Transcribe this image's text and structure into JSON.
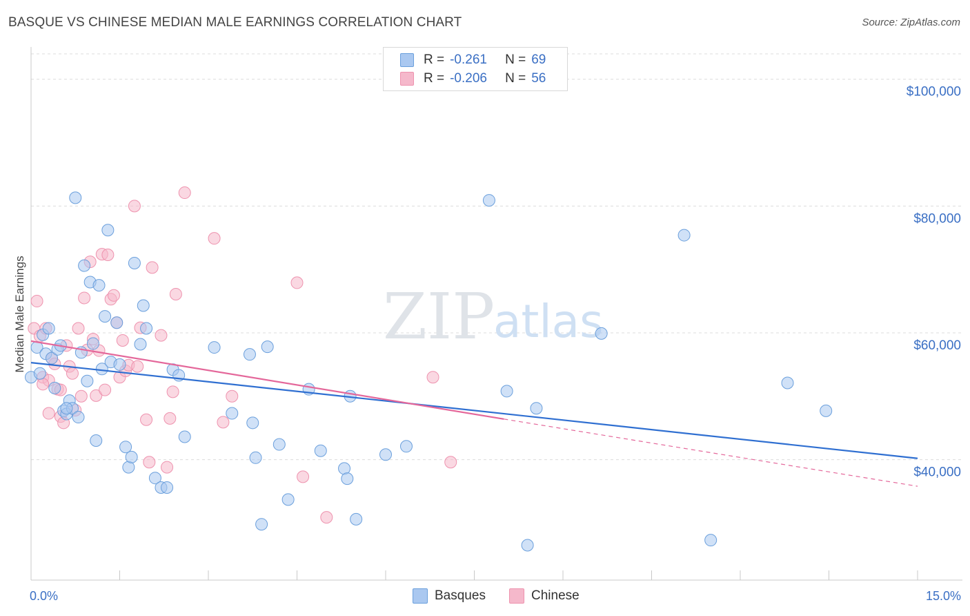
{
  "header": {
    "title": "BASQUE VS CHINESE MEDIAN MALE EARNINGS CORRELATION CHART",
    "source": "Source: ZipAtlas.com"
  },
  "watermark": {
    "zip": "ZIP",
    "atlas": "atlas"
  },
  "legend": {
    "rows": [
      {
        "r_label": "R =",
        "r_value": "-0.261",
        "n_label": "N =",
        "n_value": "69",
        "color": "#aac8f0"
      },
      {
        "r_label": "R =",
        "r_value": "-0.206",
        "n_label": "N =",
        "n_value": "56",
        "color": "#f5b8cb"
      }
    ]
  },
  "bottom_legend": [
    {
      "label": "Basques",
      "color": "#aac8f0"
    },
    {
      "label": "Chinese",
      "color": "#f5b8cb"
    }
  ],
  "chart_data": {
    "type": "scatter",
    "title": "BASQUE VS CHINESE MEDIAN MALE EARNINGS CORRELATION CHART",
    "xlabel": "",
    "ylabel": "Median Male Earnings",
    "xlim": [
      0,
      15
    ],
    "ylim": [
      21000,
      104000
    ],
    "x_tick_labels": [
      "0.0%",
      "15.0%"
    ],
    "y_ticks": [
      40000,
      60000,
      80000,
      100000
    ],
    "y_tick_labels": [
      "$40,000",
      "$60,000",
      "$80,000",
      "$100,000"
    ],
    "grid": true,
    "legend_position": "top-center",
    "series": [
      {
        "name": "Basques",
        "color": "#6a9fdc",
        "fill": "#aac8f0",
        "trend": {
          "x": [
            0.0,
            15.0
          ],
          "y": [
            55300,
            40200
          ],
          "color": "#2f6fd1"
        },
        "points": [
          [
            0.1,
            57700
          ],
          [
            0.2,
            59700
          ],
          [
            0.25,
            56700
          ],
          [
            0.3,
            60700
          ],
          [
            0.35,
            56000
          ],
          [
            0.4,
            51300
          ],
          [
            0.45,
            57400
          ],
          [
            0.5,
            58000
          ],
          [
            0.55,
            47700
          ],
          [
            0.6,
            47200
          ],
          [
            0.65,
            49300
          ],
          [
            0.7,
            48100
          ],
          [
            0.75,
            81300
          ],
          [
            0.8,
            46700
          ],
          [
            0.85,
            56900
          ],
          [
            0.9,
            70600
          ],
          [
            0.95,
            52400
          ],
          [
            1.0,
            68000
          ],
          [
            1.05,
            58300
          ],
          [
            1.1,
            43000
          ],
          [
            1.15,
            67500
          ],
          [
            1.2,
            54300
          ],
          [
            1.25,
            62600
          ],
          [
            1.3,
            76200
          ],
          [
            1.35,
            55400
          ],
          [
            1.45,
            61600
          ],
          [
            1.5,
            55000
          ],
          [
            1.6,
            42000
          ],
          [
            1.65,
            38800
          ],
          [
            1.7,
            40400
          ],
          [
            1.75,
            71000
          ],
          [
            1.85,
            58200
          ],
          [
            1.9,
            64300
          ],
          [
            1.95,
            60700
          ],
          [
            2.1,
            37100
          ],
          [
            2.2,
            35600
          ],
          [
            2.3,
            35600
          ],
          [
            2.4,
            54200
          ],
          [
            2.5,
            53300
          ],
          [
            2.6,
            43600
          ],
          [
            3.1,
            57700
          ],
          [
            3.4,
            47300
          ],
          [
            3.7,
            56600
          ],
          [
            3.75,
            45800
          ],
          [
            3.8,
            40300
          ],
          [
            3.9,
            29800
          ],
          [
            4.0,
            57800
          ],
          [
            4.2,
            42400
          ],
          [
            4.35,
            33700
          ],
          [
            4.7,
            51100
          ],
          [
            4.9,
            41400
          ],
          [
            5.3,
            38600
          ],
          [
            5.35,
            37000
          ],
          [
            5.4,
            50000
          ],
          [
            5.5,
            30600
          ],
          [
            6.0,
            40800
          ],
          [
            6.35,
            42100
          ],
          [
            7.75,
            80900
          ],
          [
            8.05,
            50800
          ],
          [
            8.4,
            26500
          ],
          [
            8.55,
            48100
          ],
          [
            9.65,
            59900
          ],
          [
            11.05,
            75400
          ],
          [
            11.5,
            27300
          ],
          [
            12.8,
            52100
          ],
          [
            13.45,
            47700
          ],
          [
            0.0,
            53000
          ],
          [
            0.15,
            53600
          ],
          [
            0.6,
            48100
          ]
        ]
      },
      {
        "name": "Chinese",
        "color": "#ee92ae",
        "fill": "#f5b8cb",
        "trend": {
          "x": [
            0.0,
            8.0
          ],
          "y": [
            58700,
            46400
          ],
          "color": "#e4679a"
        },
        "trend_dashed": {
          "x": [
            8.0,
            15.0
          ],
          "y": [
            46400,
            35800
          ],
          "color": "#e4679a"
        },
        "points": [
          [
            0.05,
            60700
          ],
          [
            0.1,
            65000
          ],
          [
            0.15,
            59500
          ],
          [
            0.2,
            53000
          ],
          [
            0.25,
            60700
          ],
          [
            0.3,
            47300
          ],
          [
            0.35,
            56000
          ],
          [
            0.4,
            55100
          ],
          [
            0.45,
            51100
          ],
          [
            0.5,
            46800
          ],
          [
            0.55,
            45800
          ],
          [
            0.6,
            58000
          ],
          [
            0.65,
            54700
          ],
          [
            0.7,
            53600
          ],
          [
            0.75,
            47800
          ],
          [
            0.8,
            60700
          ],
          [
            0.85,
            50000
          ],
          [
            0.9,
            65500
          ],
          [
            1.0,
            71200
          ],
          [
            1.05,
            59000
          ],
          [
            1.1,
            50100
          ],
          [
            1.15,
            57200
          ],
          [
            1.2,
            72400
          ],
          [
            1.25,
            51000
          ],
          [
            1.3,
            72300
          ],
          [
            1.35,
            65300
          ],
          [
            1.4,
            65900
          ],
          [
            1.45,
            61600
          ],
          [
            1.5,
            53000
          ],
          [
            1.55,
            58800
          ],
          [
            1.6,
            54000
          ],
          [
            1.65,
            54900
          ],
          [
            1.75,
            80000
          ],
          [
            1.85,
            60800
          ],
          [
            1.95,
            46300
          ],
          [
            2.0,
            39600
          ],
          [
            2.05,
            70300
          ],
          [
            2.2,
            59600
          ],
          [
            2.3,
            38800
          ],
          [
            2.35,
            46500
          ],
          [
            2.4,
            50700
          ],
          [
            2.45,
            66100
          ],
          [
            2.6,
            82100
          ],
          [
            3.1,
            74900
          ],
          [
            3.25,
            45900
          ],
          [
            3.4,
            50000
          ],
          [
            4.5,
            67900
          ],
          [
            4.6,
            37300
          ],
          [
            5.0,
            30900
          ],
          [
            6.8,
            53000
          ],
          [
            7.1,
            39600
          ],
          [
            0.5,
            51000
          ],
          [
            0.3,
            52500
          ],
          [
            0.95,
            57300
          ],
          [
            1.8,
            54700
          ],
          [
            0.2,
            51900
          ]
        ]
      }
    ]
  }
}
